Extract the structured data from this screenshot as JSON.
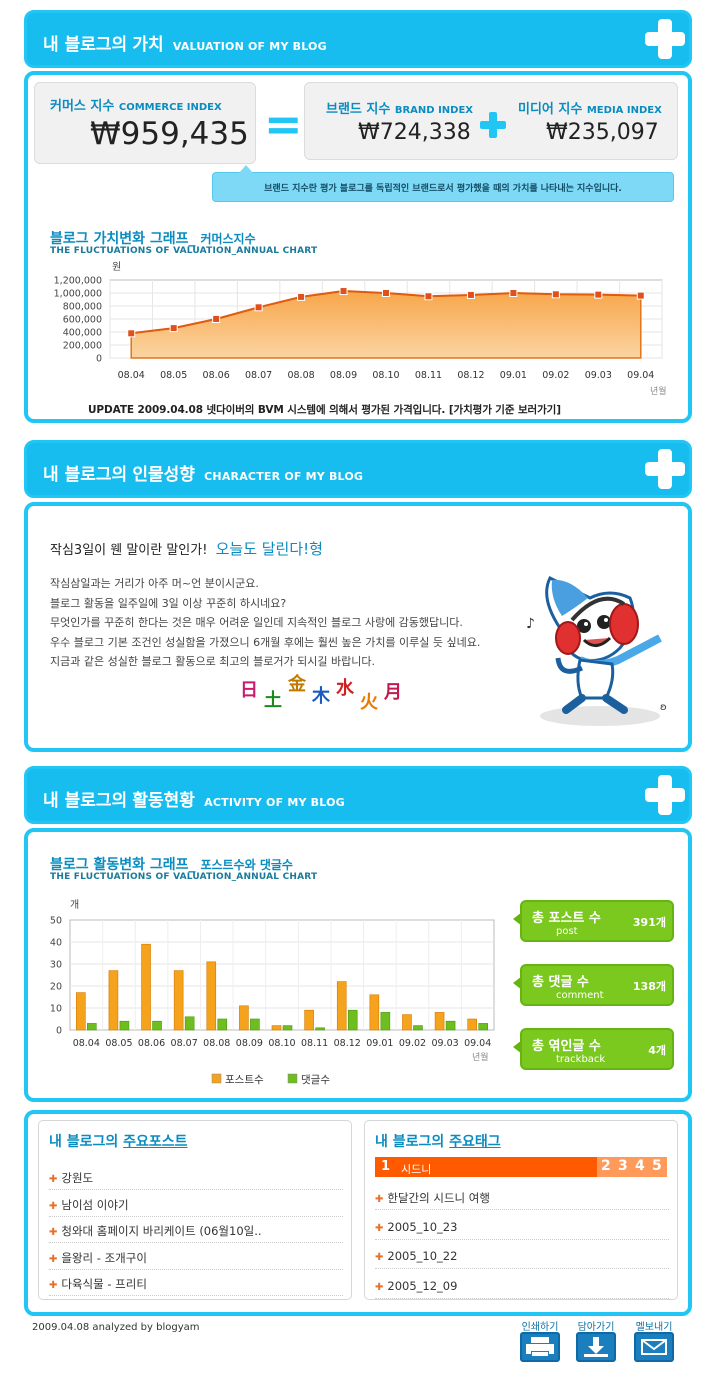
{
  "valuation": {
    "band_prefix": "내 블로그의",
    "band_highlight": "가치",
    "band_english": "VALUATION OF MY BLOG",
    "commerce_label": "커머스 지수",
    "commerce_label_en": "COMMERCE INDEX",
    "commerce_value": "₩959,435",
    "brand_label": "브랜드 지수",
    "brand_label_en": "BRAND INDEX",
    "brand_value": "₩724,338",
    "media_label": "미디어 지수",
    "media_label_en": "MEDIA INDEX",
    "media_value": "₩235,097",
    "equals_sign": "=",
    "tooltip": "브랜드 지수란 평가 블로그를 독립적인 브랜드로서 평가했을 때의 가치를 나타내는 지수입니다.",
    "graph_title": "블로그 가치변화 그래프_",
    "graph_title_sub": "커머스지수",
    "graph_subtitle": "THE FLUCTUATIONS OF VALUATION_ANNUAL CHART",
    "update_text": "UPDATE 2009.04.08 넷다이버의 BVM 시스템에 의해서 평가된 가격입니다.",
    "update_link": "[가치평가 기준 보러가기]"
  },
  "chart_data": [
    {
      "type": "area",
      "title": "블로그 가치변화 그래프_ 커머스지수",
      "ylabel": "원",
      "xlabel": "년월",
      "categories": [
        "08.04",
        "08.05",
        "08.06",
        "08.07",
        "08.08",
        "08.09",
        "08.10",
        "08.11",
        "08.12",
        "09.01",
        "09.02",
        "09.03",
        "09.04"
      ],
      "values": [
        380000,
        460000,
        600000,
        780000,
        940000,
        1030000,
        1000000,
        950000,
        970000,
        1000000,
        980000,
        975000,
        960000
      ],
      "yticks": [
        "1,200,000",
        "1,000,000",
        "800,000",
        "600,000",
        "400,000",
        "200,000",
        "0"
      ],
      "ylim": [
        0,
        1200000
      ],
      "grid": true,
      "color": "#f28c1e"
    },
    {
      "type": "bar",
      "title": "블로그 활동변화 그래프_ 포스트수와 댓글수",
      "ylabel": "개",
      "xlabel": "년월",
      "categories": [
        "08.04",
        "08.05",
        "08.06",
        "08.07",
        "08.08",
        "08.09",
        "08.10",
        "08.11",
        "08.12",
        "09.01",
        "09.02",
        "09.03",
        "09.04"
      ],
      "series": [
        {
          "name": "포스트수",
          "color": "#f5a21c",
          "values": [
            17,
            27,
            39,
            27,
            31,
            11,
            2,
            9,
            22,
            16,
            7,
            8,
            5
          ]
        },
        {
          "name": "댓글수",
          "color": "#6dbe1e",
          "values": [
            3,
            4,
            4,
            6,
            5,
            5,
            2,
            1,
            9,
            8,
            2,
            4,
            3
          ]
        }
      ],
      "yticks": [
        "50",
        "40",
        "30",
        "20",
        "10",
        "0"
      ],
      "ylim": [
        0,
        50
      ],
      "grid": true,
      "legend": "bottom"
    }
  ],
  "character": {
    "band_prefix": "내 블로그의",
    "band_highlight": "인물성향",
    "band_english": "CHARACTER OF MY BLOG",
    "headline": "작심3일이 웬 말이란 말인가!",
    "headline_type": "오늘도 달린다!형",
    "lines": [
      "작심삼일과는 거리가 아주 머~언 분이시군요.",
      "블로그 활동을 일주일에 3일 이상 꾸준히 하시네요?",
      "무엇인가를 꾸준히 한다는 것은 매우 어려운 일인데 지속적인 블로그 사랑에 감동했답니다.",
      "우수 블로그 기본 조건인 성실함을 가졌으니 6개월 후에는 훨씬 높은 가치를 이루실 듯 싶네요.",
      "지금과 같은 성실한 블로그 활동으로 최고의 블로거가 되시길 바랍니다."
    ],
    "weekdays": [
      "日",
      "土",
      "金",
      "木",
      "水",
      "火",
      "月"
    ]
  },
  "activity": {
    "band_prefix": "내 블로그의",
    "band_highlight": "활동현황",
    "band_english": "ACTIVITY OF MY BLOG",
    "graph_title": "블로그 활동변화 그래프_",
    "graph_title_sub": "포스트수와 댓글수",
    "graph_subtitle": "THE FLUCTUATIONS OF VALUATION_ANNUAL CHART",
    "stats": [
      {
        "label": "총 포스트 수",
        "sub": "post",
        "value": "391개"
      },
      {
        "label": "총 댓글 수",
        "sub": "comment",
        "value": "138개"
      },
      {
        "label": "총 엮인글 수",
        "sub": "trackback",
        "value": "4개"
      }
    ]
  },
  "main_posts": {
    "title_prefix": "내 블로그의",
    "title_highlight": "주요포스트",
    "items": [
      "강원도",
      "남이섬 이야기",
      "청와대 홈페이지 바리케이트 (06월10일..",
      "을왕리 - 조개구이",
      "다육식물 - 프리티"
    ]
  },
  "main_tags": {
    "title_prefix": "내 블로그의",
    "title_highlight": "주요태그",
    "active_rank": "1",
    "active_tag": "시드니",
    "ranks": [
      "2",
      "3",
      "4",
      "5"
    ],
    "items": [
      "한달간의 시드니 여행",
      "2005_10_23",
      "2005_10_22",
      "2005_12_09"
    ]
  },
  "footer": {
    "analyzed": "2009.04.08 analyzed by blogyam",
    "print": "인쇄하기",
    "save": "담아가기",
    "mail": "멜보내기"
  }
}
